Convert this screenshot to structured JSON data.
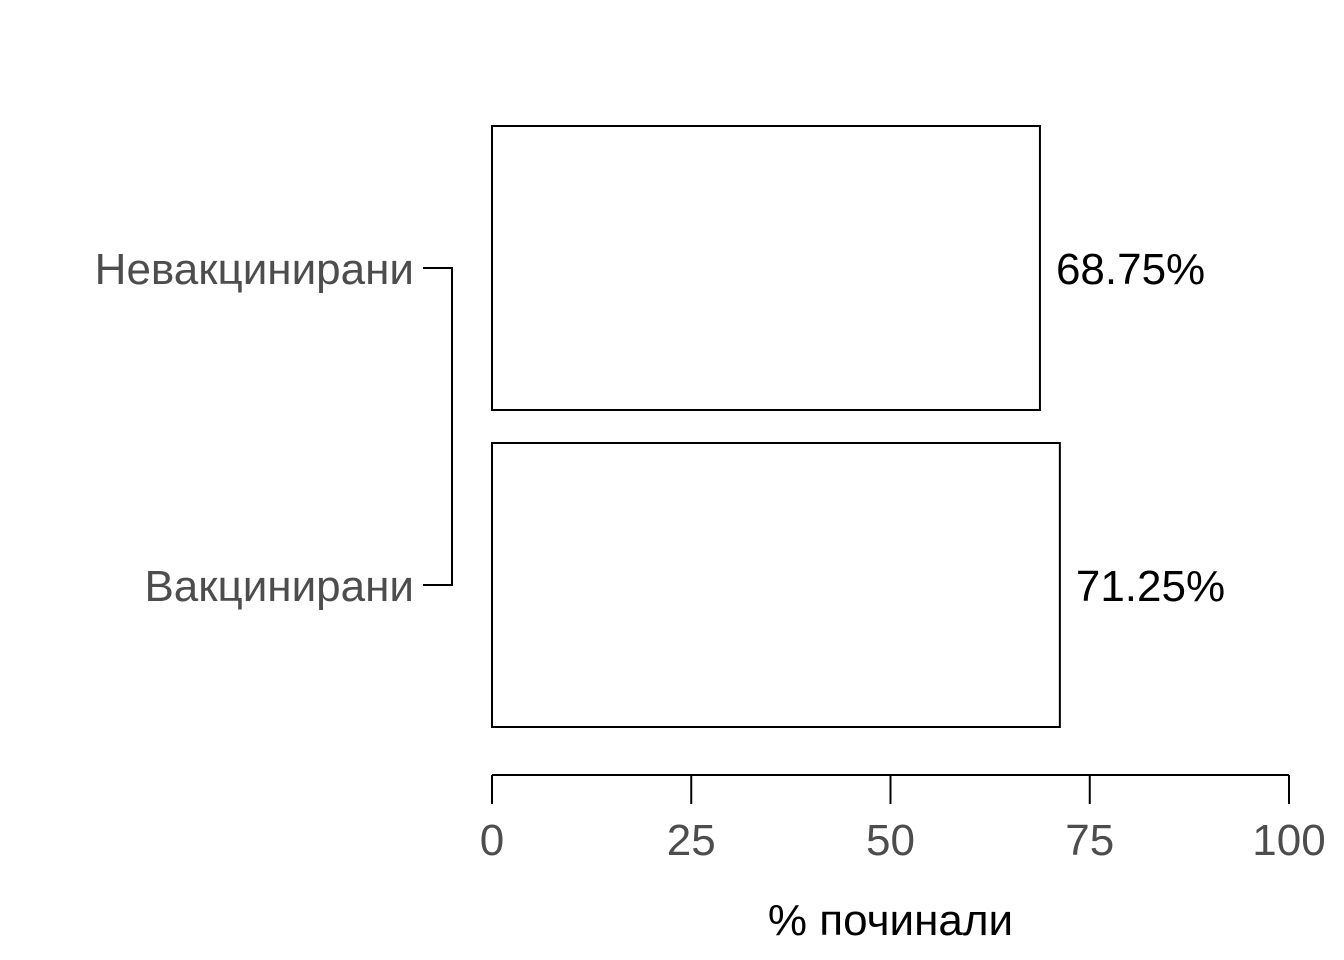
{
  "chart_data": {
    "type": "bar",
    "orientation": "horizontal",
    "categories": [
      "Невакцинирани",
      "Вакцинирани"
    ],
    "values": [
      68.75,
      71.25
    ],
    "data_labels": [
      "68.75%",
      "71.25%"
    ],
    "xlabel": "% починали",
    "ylabel": "",
    "xlim": [
      0,
      100
    ],
    "xticks": [
      0,
      25,
      50,
      75,
      100
    ],
    "xtick_labels": [
      "0",
      "25",
      "50",
      "75",
      "100"
    ],
    "grid": false,
    "legend": "none",
    "colors": {
      "bar_fill": "#ffffff",
      "bar_stroke": "#000000",
      "tick_text": "#4d4d4d",
      "label_text": "#000000"
    }
  }
}
